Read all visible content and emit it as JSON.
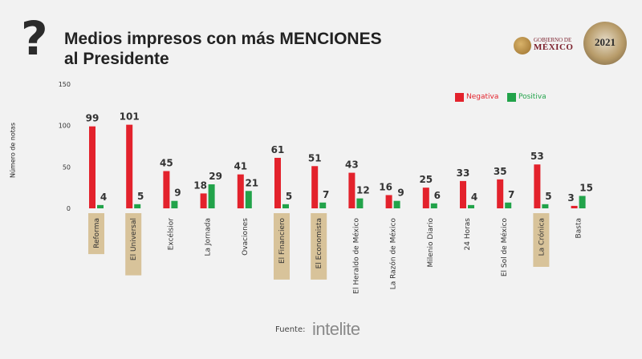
{
  "header": {
    "title_line1": "Medios impresos con más MENCIONES",
    "title_line2": "al Presidente",
    "question_mark": "?"
  },
  "logos": {
    "gob_small": "GOBIERNO DE",
    "gob_big": "MÉXICO",
    "seal_year": "2021"
  },
  "source": {
    "label": "Fuente:",
    "brand": "intelite"
  },
  "colors": {
    "negativa": "#e3222c",
    "positiva": "#22a34a",
    "highlight": "#d8c39a"
  },
  "chart_data": {
    "type": "bar",
    "ylabel": "Número de notas",
    "ylim": [
      0,
      150
    ],
    "yticks": [
      0,
      50,
      100,
      150
    ],
    "grid": false,
    "legend_position": "top-right",
    "categories": [
      "Reforma",
      "El Universal",
      "Excélsior",
      "La Jornada",
      "Ovaciones",
      "El Financiero",
      "El Economista",
      "El Heraldo de México",
      "La Razón de México",
      "Milenio Diario",
      "24 Horas",
      "El Sol de México",
      "La Crónica",
      "Basta"
    ],
    "highlighted": [
      true,
      true,
      false,
      false,
      false,
      true,
      true,
      false,
      false,
      false,
      false,
      false,
      true,
      false
    ],
    "series": [
      {
        "name": "Negativa",
        "color": "#e3222c",
        "values": [
          99,
          101,
          45,
          18,
          41,
          61,
          51,
          43,
          16,
          25,
          33,
          35,
          53,
          3
        ]
      },
      {
        "name": "Positiva",
        "color": "#22a34a",
        "values": [
          4,
          5,
          9,
          29,
          21,
          5,
          7,
          12,
          9,
          6,
          4,
          7,
          5,
          15
        ]
      }
    ]
  }
}
